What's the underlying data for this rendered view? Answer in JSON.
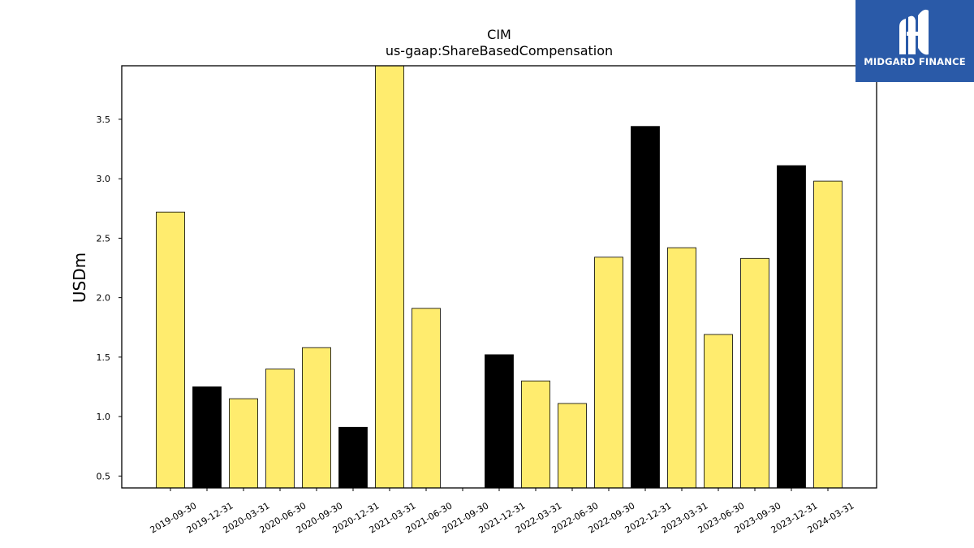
{
  "brand": {
    "name": "MIDGARD FINANCE",
    "bg_color": "#2a5aa8",
    "text_color": "#ffffff"
  },
  "chart_data": {
    "type": "bar",
    "title": "CIM",
    "subtitle": "us-gaap:ShareBasedCompensation",
    "xlabel": "",
    "ylabel": "USDm",
    "ylim": [
      0.4,
      3.95
    ],
    "yticks": [
      "0.5",
      "1.0",
      "1.5",
      "2.0",
      "2.5",
      "3.0",
      "3.5"
    ],
    "grid": false,
    "categories": [
      "2019-09-30",
      "2019-12-31",
      "2020-03-31",
      "2020-06-30",
      "2020-09-30",
      "2020-12-31",
      "2021-03-31",
      "2021-06-30",
      "2021-09-30",
      "2021-12-31",
      "2022-03-31",
      "2022-06-30",
      "2022-09-30",
      "2022-12-31",
      "2023-03-31",
      "2023-06-30",
      "2023-09-30",
      "2023-12-31",
      "2024-03-31"
    ],
    "values": [
      2.72,
      1.25,
      1.15,
      1.4,
      1.58,
      0.91,
      3.95,
      1.91,
      null,
      1.52,
      1.3,
      1.11,
      2.34,
      3.44,
      2.42,
      1.69,
      2.33,
      3.11,
      2.98
    ],
    "bar_kinds": [
      "q",
      "y",
      "q",
      "q",
      "q",
      "y",
      "q",
      "q",
      "q",
      "y",
      "q",
      "q",
      "q",
      "y",
      "q",
      "q",
      "q",
      "y",
      "q"
    ],
    "colors": {
      "q": "#ffec6e",
      "y": "#000000",
      "edge": "#000000"
    }
  }
}
